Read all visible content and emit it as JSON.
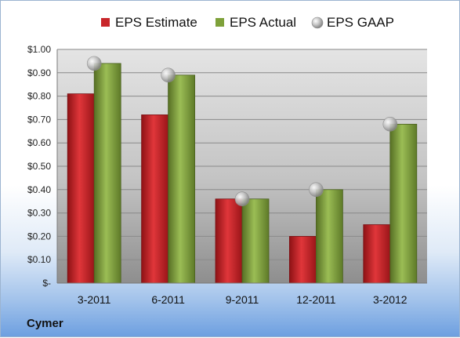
{
  "company": "Cymer",
  "colors": {
    "estimate": "#c8262a",
    "actual": "#7ea13a",
    "gaap": "#b5b5b5"
  },
  "chart_data": {
    "type": "bar",
    "categories": [
      "3-2011",
      "6-2011",
      "9-2011",
      "12-2011",
      "3-2012"
    ],
    "series": [
      {
        "name": "EPS Estimate",
        "kind": "bar",
        "values": [
          0.81,
          0.72,
          0.36,
          0.2,
          0.25
        ]
      },
      {
        "name": "EPS Actual",
        "kind": "bar",
        "values": [
          0.94,
          0.89,
          0.36,
          0.4,
          0.68
        ]
      },
      {
        "name": "EPS GAAP",
        "kind": "marker",
        "values": [
          0.94,
          0.89,
          0.36,
          0.4,
          0.68
        ]
      }
    ],
    "ylim": [
      0,
      1.0
    ],
    "yticks": [
      0,
      0.1,
      0.2,
      0.3,
      0.4,
      0.5,
      0.6,
      0.7,
      0.8,
      0.9,
      1.0
    ],
    "ytick_labels": [
      "$-",
      "$0.10",
      "$0.20",
      "$0.30",
      "$0.40",
      "$0.50",
      "$0.60",
      "$0.70",
      "$0.80",
      "$0.90",
      "$1.00"
    ],
    "legend_position": "top",
    "grid": true
  }
}
